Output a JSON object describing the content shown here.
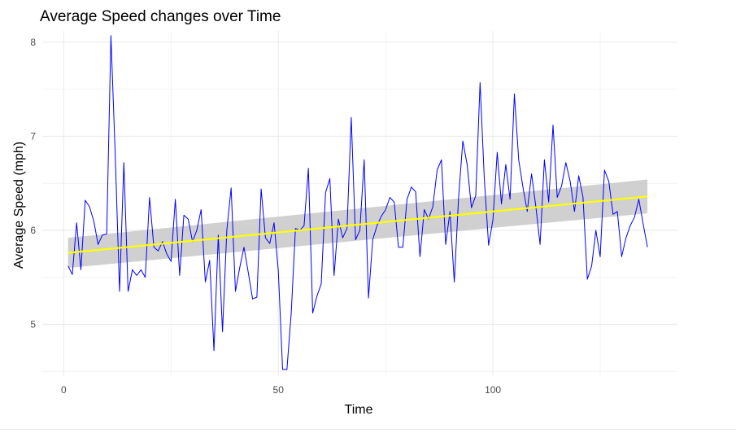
{
  "chart_data": {
    "type": "line",
    "title": "Average Speed changes over Time",
    "xlabel": "Time",
    "ylabel": "Average Speed (mph)",
    "xlim": [
      -5,
      143
    ],
    "ylim": [
      4.45,
      8.12
    ],
    "x_ticks": [
      0,
      50,
      100
    ],
    "y_ticks": [
      5,
      6,
      7,
      8
    ],
    "grid": true,
    "colors": {
      "series": "#0000ff",
      "trend": "#ffff00",
      "band": "#c8c8c8",
      "grid": "#ebebeb",
      "text": "#000000",
      "tick_text": "#4d4d4d"
    },
    "series": [
      {
        "x": [
          1,
          2,
          3,
          4,
          5,
          6,
          7,
          8,
          9,
          10,
          11,
          12,
          13,
          14,
          15,
          16,
          17,
          18,
          19,
          20,
          21,
          22,
          23,
          24,
          25,
          26,
          27,
          28,
          29,
          30,
          31,
          32,
          33,
          34,
          35,
          36,
          37,
          38,
          39,
          40,
          41,
          42,
          43,
          44,
          45,
          46,
          47,
          48,
          49,
          50,
          51,
          52,
          53,
          54,
          55,
          56,
          57,
          58,
          59,
          60,
          61,
          62,
          63,
          64,
          65,
          66,
          67,
          68,
          69,
          70,
          71,
          72,
          73,
          74,
          75,
          76,
          77,
          78,
          79,
          80,
          81,
          82,
          83,
          84,
          85,
          86,
          87,
          88,
          89,
          90,
          91,
          92,
          93,
          94,
          95,
          96,
          97,
          98,
          99,
          100,
          101,
          102,
          103,
          104,
          105,
          106,
          107,
          108,
          109,
          110,
          111,
          112,
          113,
          114,
          115,
          116,
          117,
          118,
          119,
          120,
          121,
          122,
          123,
          124,
          125,
          126,
          127,
          128,
          129,
          130,
          131,
          132,
          133,
          134,
          135,
          136
        ],
        "values": [
          5.62,
          5.53,
          6.08,
          5.58,
          6.32,
          6.25,
          6.1,
          5.85,
          5.95,
          5.96,
          8.07,
          6.8,
          5.35,
          6.72,
          5.35,
          5.58,
          5.52,
          5.58,
          5.5,
          6.35,
          5.82,
          5.78,
          5.88,
          5.75,
          5.67,
          6.33,
          5.52,
          6.16,
          6.12,
          5.88,
          6.0,
          6.22,
          5.45,
          5.68,
          4.72,
          5.95,
          4.92,
          6.0,
          6.45,
          5.35,
          5.6,
          5.82,
          5.55,
          5.27,
          5.29,
          6.44,
          5.92,
          5.86,
          6.08,
          5.57,
          4.52,
          4.52,
          5.12,
          6.02,
          6.0,
          6.05,
          6.66,
          5.12,
          5.3,
          5.43,
          6.4,
          6.55,
          5.52,
          6.12,
          5.92,
          6.02,
          7.2,
          5.9,
          6.0,
          6.75,
          5.28,
          5.9,
          6.05,
          6.15,
          6.22,
          6.35,
          6.3,
          5.82,
          5.82,
          6.33,
          6.46,
          6.41,
          5.72,
          6.22,
          6.12,
          6.25,
          6.64,
          6.75,
          5.85,
          6.2,
          5.45,
          6.35,
          6.95,
          6.7,
          6.24,
          6.37,
          7.57,
          6.55,
          5.84,
          6.11,
          6.83,
          6.28,
          6.7,
          6.33,
          7.45,
          6.75,
          6.46,
          6.2,
          6.6,
          6.25,
          5.85,
          6.75,
          6.3,
          7.12,
          6.35,
          6.47,
          6.72,
          6.52,
          6.2,
          6.58,
          6.35,
          5.48,
          5.62,
          6.0,
          5.72,
          6.64,
          6.52,
          6.17,
          6.2,
          5.72,
          5.92,
          6.05,
          6.14,
          6.33,
          6.07,
          5.82
        ]
      }
    ],
    "trend": {
      "x": [
        1,
        136
      ],
      "y": [
        5.76,
        6.36
      ],
      "ci_lower": [
        5.6,
        6.18
      ],
      "ci_upper": [
        5.92,
        6.54
      ]
    }
  }
}
